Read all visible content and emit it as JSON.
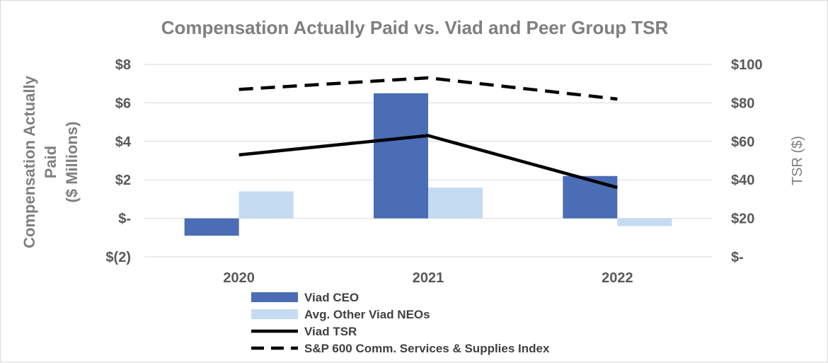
{
  "chart_data": {
    "type": "bar",
    "title": "Compensation Actually Paid vs. Viad and Peer Group TSR",
    "categories": [
      "2020",
      "2021",
      "2022"
    ],
    "ylabel": [
      "Compensation Actually",
      "Paid",
      "($ Millions)"
    ],
    "y2label": "TSR ($)",
    "ylim": [
      -2,
      8
    ],
    "y2lim": [
      0,
      100
    ],
    "yticks": [
      {
        "value": 8,
        "label": "$8"
      },
      {
        "value": 6,
        "label": "$6"
      },
      {
        "value": 4,
        "label": "$4"
      },
      {
        "value": 2,
        "label": "$2"
      },
      {
        "value": 0,
        "label": "$-"
      },
      {
        "value": -2,
        "label": "$(2)"
      }
    ],
    "y2ticks": [
      {
        "value": 100,
        "label": "$100"
      },
      {
        "value": 80,
        "label": "$80"
      },
      {
        "value": 60,
        "label": "$60"
      },
      {
        "value": 40,
        "label": "$40"
      },
      {
        "value": 20,
        "label": "$20"
      },
      {
        "value": 0,
        "label": "$-"
      }
    ],
    "bar_series": [
      {
        "name": "Viad CEO",
        "values": [
          -0.9,
          6.5,
          2.2
        ],
        "color": "#4a6db5"
      },
      {
        "name": "Avg. Other Viad NEOs",
        "values": [
          1.4,
          1.6,
          -0.4
        ],
        "color": "#c5dbf1"
      }
    ],
    "line_series": [
      {
        "name": "Viad TSR",
        "values": [
          53,
          63,
          36
        ],
        "color": "#000000",
        "dashed": false
      },
      {
        "name": "S&P 600 Comm. Services & Supplies Index",
        "values": [
          87,
          93,
          82
        ],
        "color": "#000000",
        "dashed": true
      }
    ],
    "legend": "bottom",
    "grid": true
  }
}
